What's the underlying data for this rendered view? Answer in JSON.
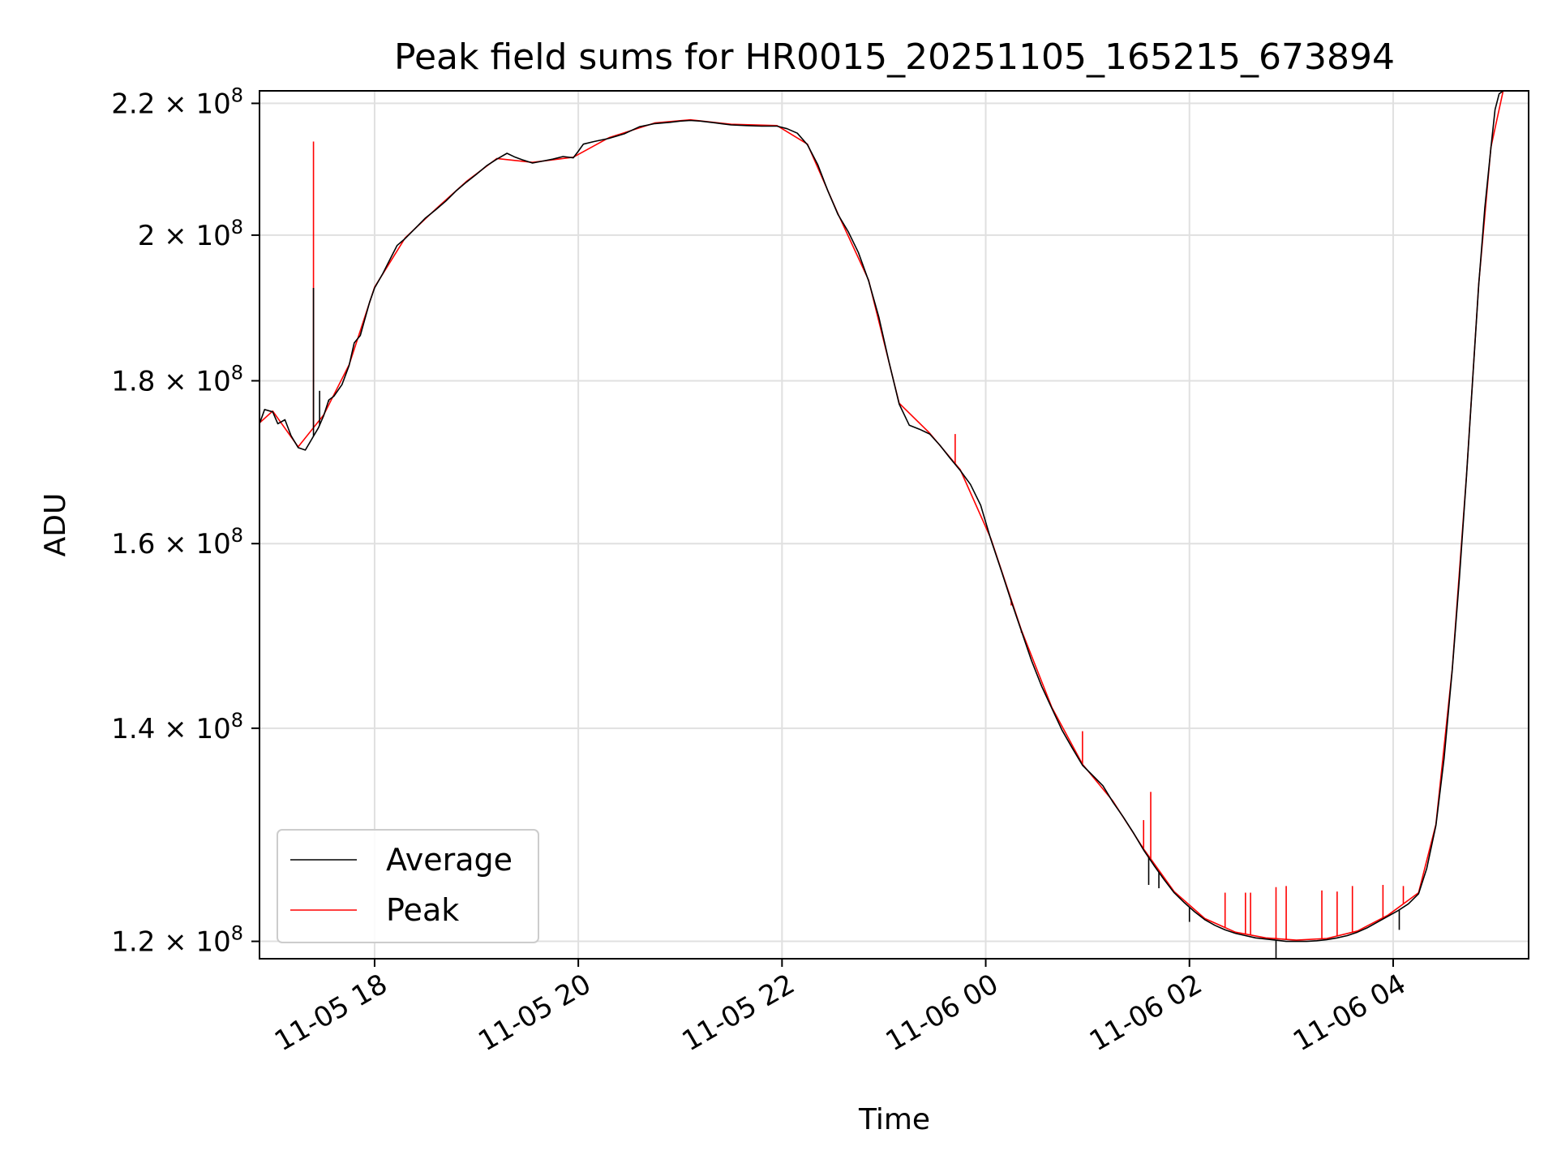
{
  "chart_data": {
    "type": "line",
    "title": "Peak field sums for HR0015_20251105_165215_673894",
    "xlabel": "Time",
    "ylabel": "ADU",
    "y_scale": "log",
    "x_unit": "hours since 2025-11-05 00:00",
    "xlim": [
      16.87,
      29.33
    ],
    "ylim": [
      118500000,
      222000000
    ],
    "grid": true,
    "legend_position": "lower-left",
    "x_ticks": [
      {
        "value": 18,
        "label": "11-05 18"
      },
      {
        "value": 20,
        "label": "11-05 20"
      },
      {
        "value": 22,
        "label": "11-05 22"
      },
      {
        "value": 24,
        "label": "11-06 00"
      },
      {
        "value": 26,
        "label": "11-06 02"
      },
      {
        "value": 28,
        "label": "11-06 04"
      }
    ],
    "y_ticks": [
      {
        "value": 120000000,
        "mantissa": "1.2",
        "base": "10",
        "exp": "8"
      },
      {
        "value": 140000000,
        "mantissa": "1.4",
        "base": "10",
        "exp": "8"
      },
      {
        "value": 160000000,
        "mantissa": "1.6",
        "base": "10",
        "exp": "8"
      },
      {
        "value": 180000000,
        "mantissa": "1.8",
        "base": "10",
        "exp": "8"
      },
      {
        "value": 200000000,
        "mantissa": "2",
        "base": "10",
        "exp": "8"
      },
      {
        "value": 220000000,
        "mantissa": "2.2",
        "base": "10",
        "exp": "8"
      }
    ],
    "series": [
      {
        "name": "Average",
        "color": "#000000",
        "points": [
          [
            16.87,
            174500000
          ],
          [
            16.92,
            176300000
          ],
          [
            17.0,
            176000000
          ],
          [
            17.05,
            174500000
          ],
          [
            17.12,
            175000000
          ],
          [
            17.18,
            173000000
          ],
          [
            17.25,
            171500000
          ],
          [
            17.32,
            171200000
          ],
          [
            17.38,
            172500000
          ],
          [
            17.45,
            174000000
          ],
          [
            17.5,
            175500000
          ],
          [
            17.55,
            177500000
          ],
          [
            17.6,
            178000000
          ],
          [
            17.68,
            179500000
          ],
          [
            17.75,
            182000000
          ],
          [
            17.8,
            185000000
          ],
          [
            17.86,
            186000000
          ],
          [
            17.9,
            188000000
          ],
          [
            17.95,
            190500000
          ],
          [
            18.0,
            192500000
          ],
          [
            18.08,
            194500000
          ],
          [
            18.15,
            196500000
          ],
          [
            18.22,
            198500000
          ],
          [
            18.3,
            199500000
          ],
          [
            18.4,
            201000000
          ],
          [
            18.5,
            202500000
          ],
          [
            18.6,
            203700000
          ],
          [
            18.7,
            205000000
          ],
          [
            18.8,
            206500000
          ],
          [
            18.9,
            207800000
          ],
          [
            19.0,
            209000000
          ],
          [
            19.1,
            210300000
          ],
          [
            19.2,
            211300000
          ],
          [
            19.3,
            212200000
          ],
          [
            19.38,
            211600000
          ],
          [
            19.45,
            211200000
          ],
          [
            19.55,
            210700000
          ],
          [
            19.65,
            211000000
          ],
          [
            19.75,
            211300000
          ],
          [
            19.85,
            211700000
          ],
          [
            19.95,
            211500000
          ],
          [
            20.0,
            212500000
          ],
          [
            20.05,
            213600000
          ],
          [
            20.15,
            214000000
          ],
          [
            20.3,
            214500000
          ],
          [
            20.45,
            215200000
          ],
          [
            20.6,
            216300000
          ],
          [
            20.75,
            216800000
          ],
          [
            20.9,
            217000000
          ],
          [
            21.0,
            217200000
          ],
          [
            21.1,
            217300000
          ],
          [
            21.2,
            217200000
          ],
          [
            21.35,
            216900000
          ],
          [
            21.5,
            216600000
          ],
          [
            21.65,
            216500000
          ],
          [
            21.8,
            216400000
          ],
          [
            21.95,
            216400000
          ],
          [
            22.05,
            216000000
          ],
          [
            22.15,
            215300000
          ],
          [
            22.25,
            213500000
          ],
          [
            22.35,
            210500000
          ],
          [
            22.45,
            206500000
          ],
          [
            22.55,
            203000000
          ],
          [
            22.65,
            200500000
          ],
          [
            22.75,
            197500000
          ],
          [
            22.85,
            193500000
          ],
          [
            22.95,
            188500000
          ],
          [
            23.05,
            182500000
          ],
          [
            23.15,
            177000000
          ],
          [
            23.25,
            174300000
          ],
          [
            23.35,
            173800000
          ],
          [
            23.45,
            173200000
          ],
          [
            23.55,
            171800000
          ],
          [
            23.65,
            170200000
          ],
          [
            23.75,
            168700000
          ],
          [
            23.85,
            167000000
          ],
          [
            23.95,
            164500000
          ],
          [
            24.05,
            160500000
          ],
          [
            24.15,
            157000000
          ],
          [
            24.25,
            153500000
          ],
          [
            24.35,
            150200000
          ],
          [
            24.45,
            147000000
          ],
          [
            24.55,
            144300000
          ],
          [
            24.65,
            142000000
          ],
          [
            24.75,
            139800000
          ],
          [
            24.85,
            138000000
          ],
          [
            24.95,
            136300000
          ],
          [
            25.05,
            135300000
          ],
          [
            25.15,
            134300000
          ],
          [
            25.25,
            132700000
          ],
          [
            25.35,
            131300000
          ],
          [
            25.45,
            129800000
          ],
          [
            25.55,
            128200000
          ],
          [
            25.65,
            126800000
          ],
          [
            25.75,
            125500000
          ],
          [
            25.85,
            124300000
          ],
          [
            25.95,
            123400000
          ],
          [
            26.05,
            122600000
          ],
          [
            26.15,
            121900000
          ],
          [
            26.25,
            121400000
          ],
          [
            26.35,
            121000000
          ],
          [
            26.45,
            120700000
          ],
          [
            26.55,
            120500000
          ],
          [
            26.65,
            120300000
          ],
          [
            26.75,
            120200000
          ],
          [
            26.85,
            120100000
          ],
          [
            26.95,
            120000000
          ],
          [
            27.05,
            120000000
          ],
          [
            27.15,
            120000000
          ],
          [
            27.25,
            120050000
          ],
          [
            27.35,
            120150000
          ],
          [
            27.45,
            120300000
          ],
          [
            27.55,
            120500000
          ],
          [
            27.65,
            120800000
          ],
          [
            27.75,
            121200000
          ],
          [
            27.85,
            121700000
          ],
          [
            27.95,
            122200000
          ],
          [
            28.05,
            122700000
          ],
          [
            28.15,
            123300000
          ],
          [
            28.25,
            124200000
          ],
          [
            28.33,
            126500000
          ],
          [
            28.42,
            130500000
          ],
          [
            28.5,
            137000000
          ],
          [
            28.58,
            146000000
          ],
          [
            28.65,
            156000000
          ],
          [
            28.72,
            168000000
          ],
          [
            28.78,
            180000000
          ],
          [
            28.84,
            193000000
          ],
          [
            28.9,
            204000000
          ],
          [
            28.96,
            213000000
          ],
          [
            29.0,
            219000000
          ],
          [
            29.04,
            221500000
          ],
          [
            29.08,
            222000000
          ]
        ],
        "spikes": [
          [
            17.4,
            192500000
          ],
          [
            17.55,
            177300000
          ],
          [
            17.46,
            178700000
          ],
          [
            26.85,
            118500000
          ],
          [
            25.6,
            125000000
          ],
          [
            25.7,
            124700000
          ],
          [
            28.06,
            121000000
          ],
          [
            26.0,
            121700000
          ]
        ]
      },
      {
        "name": "Peak",
        "color": "#ff0000",
        "points": [
          [
            16.87,
            174600000
          ],
          [
            17.0,
            176100000
          ],
          [
            17.25,
            171600000
          ],
          [
            17.5,
            175600000
          ],
          [
            17.75,
            182100000
          ],
          [
            18.0,
            192600000
          ],
          [
            18.3,
            199600000
          ],
          [
            18.6,
            203800000
          ],
          [
            18.9,
            207900000
          ],
          [
            19.2,
            211400000
          ],
          [
            19.55,
            210800000
          ],
          [
            19.95,
            211600000
          ],
          [
            20.3,
            214600000
          ],
          [
            20.75,
            216900000
          ],
          [
            21.1,
            217400000
          ],
          [
            21.5,
            216700000
          ],
          [
            21.95,
            216500000
          ],
          [
            22.25,
            213600000
          ],
          [
            22.55,
            203100000
          ],
          [
            22.85,
            193600000
          ],
          [
            23.15,
            177100000
          ],
          [
            23.45,
            173300000
          ],
          [
            23.75,
            168800000
          ],
          [
            24.05,
            160600000
          ],
          [
            24.35,
            150300000
          ],
          [
            24.65,
            142100000
          ],
          [
            24.95,
            136400000
          ],
          [
            25.25,
            132800000
          ],
          [
            25.55,
            128300000
          ],
          [
            25.85,
            124400000
          ],
          [
            26.15,
            122000000
          ],
          [
            26.45,
            120800000
          ],
          [
            26.75,
            120300000
          ],
          [
            27.05,
            120100000
          ],
          [
            27.35,
            120250000
          ],
          [
            27.65,
            120900000
          ],
          [
            27.95,
            122300000
          ],
          [
            28.25,
            124300000
          ],
          [
            28.42,
            130600000
          ],
          [
            28.58,
            146100000
          ],
          [
            28.72,
            168100000
          ],
          [
            28.84,
            193100000
          ],
          [
            28.96,
            213100000
          ],
          [
            29.08,
            222000000
          ]
        ],
        "spikes": [
          [
            17.4,
            214000000
          ],
          [
            23.7,
            173200000
          ],
          [
            24.25,
            153000000
          ],
          [
            24.35,
            150000000
          ],
          [
            24.7,
            141000000
          ],
          [
            24.95,
            139700000
          ],
          [
            25.55,
            131000000
          ],
          [
            25.62,
            133700000
          ],
          [
            26.35,
            124300000
          ],
          [
            26.55,
            124300000
          ],
          [
            26.6,
            124300000
          ],
          [
            26.85,
            124800000
          ],
          [
            26.95,
            124900000
          ],
          [
            27.3,
            124500000
          ],
          [
            27.45,
            124400000
          ],
          [
            27.6,
            124900000
          ],
          [
            27.9,
            125000000
          ],
          [
            28.1,
            124900000
          ]
        ]
      }
    ]
  }
}
